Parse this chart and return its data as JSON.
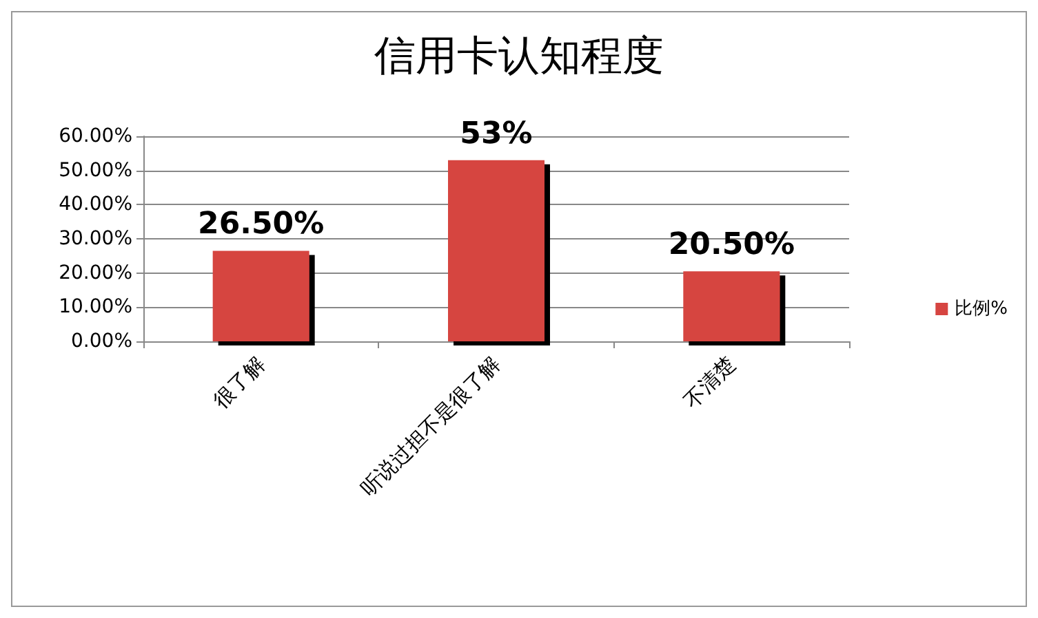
{
  "chart_data": {
    "type": "bar",
    "title": "信用卡认知程度",
    "categories": [
      "很了解",
      "听说过担不是很了解",
      "不清楚"
    ],
    "series": [
      {
        "name": "比例%",
        "color": "#d64541",
        "values": [
          26.5,
          53,
          20.5
        ],
        "value_labels": [
          "26.50%",
          "53%",
          "20.50%"
        ]
      }
    ],
    "ylim": [
      0,
      60
    ],
    "yticks": [
      {
        "value": 0,
        "label": "0.00%"
      },
      {
        "value": 10,
        "label": "10.00%"
      },
      {
        "value": 20,
        "label": "20.00%"
      },
      {
        "value": 30,
        "label": "30.00%"
      },
      {
        "value": 40,
        "label": "40.00%"
      },
      {
        "value": 50,
        "label": "50.00%"
      },
      {
        "value": 60,
        "label": "60.00%"
      }
    ],
    "grid": "y",
    "legend": "right"
  }
}
